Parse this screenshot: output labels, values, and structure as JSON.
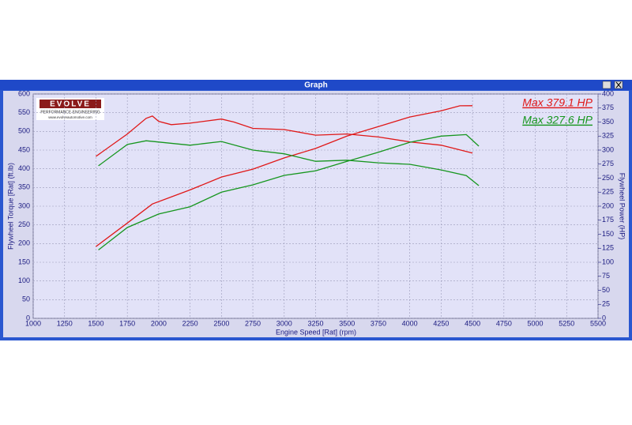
{
  "window": {
    "title": "Graph"
  },
  "logo": {
    "brand": "EVOLVE",
    "tagline": "PERFORMANCE ENGINEERING",
    "url": "www.evolveautomotive.com"
  },
  "chart_data": {
    "type": "line",
    "x_label": "Engine Speed [Rat] (rpm)",
    "y_label": "Flywheel Torque [Rat] (ft.lb)",
    "y2_label": "Flywheel Power (HP)",
    "xlim": [
      1000,
      5500
    ],
    "xticks": [
      1000,
      1250,
      1500,
      1750,
      2000,
      2250,
      2500,
      2750,
      3000,
      3250,
      3500,
      3750,
      4000,
      4250,
      4500,
      4750,
      5000,
      5250,
      5500
    ],
    "ylim": [
      0,
      600
    ],
    "yticks": [
      0,
      50,
      100,
      150,
      200,
      250,
      300,
      350,
      400,
      450,
      500,
      550,
      600
    ],
    "y2lim": [
      0,
      400
    ],
    "y2ticks": [
      0,
      25,
      50,
      75,
      100,
      125,
      150,
      175,
      200,
      225,
      250,
      275,
      300,
      325,
      350,
      375,
      400
    ],
    "grid": true,
    "series": [
      {
        "color": "#e01818",
        "x": [
          1500,
          1750,
          1900,
          1950,
          2000,
          2100,
          2250,
          2500,
          2600,
          2750,
          3000,
          3250,
          3500,
          3750,
          4000,
          4250,
          4500
        ],
        "values": [
          433,
          493,
          535,
          541,
          527,
          518,
          522,
          533,
          525,
          508,
          505,
          490,
          493,
          485,
          472,
          463,
          442
        ]
      },
      {
        "color": "#e01818",
        "axis": "y2",
        "x": [
          1500,
          1750,
          1950,
          2250,
          2500,
          2750,
          3000,
          3250,
          3500,
          3750,
          4000,
          4250,
          4400,
          4500
        ],
        "values": [
          128,
          170,
          204,
          229,
          252,
          266,
          286,
          303,
          325,
          342,
          359,
          370,
          379,
          379.1
        ]
      },
      {
        "color": "#16961e",
        "x": [
          1520,
          1750,
          1900,
          2250,
          2500,
          2750,
          3000,
          3250,
          3500,
          3750,
          4000,
          4250,
          4450,
          4550
        ],
        "values": [
          408,
          465,
          475,
          463,
          473,
          450,
          440,
          420,
          423,
          416,
          412,
          397,
          382,
          355
        ]
      },
      {
        "color": "#16961e",
        "axis": "y2",
        "x": [
          1520,
          1750,
          2000,
          2250,
          2500,
          2750,
          3000,
          3250,
          3500,
          3750,
          4000,
          4250,
          4450,
          4550
        ],
        "values": [
          122,
          162,
          186,
          199,
          225,
          238,
          255,
          263,
          280,
          296,
          314,
          325,
          327.6,
          307
        ]
      }
    ],
    "annotations": [
      {
        "text": "Max 379.1 HP",
        "color": "#e01818"
      },
      {
        "text": "Max 327.6 HP",
        "color": "#16961e"
      }
    ]
  }
}
